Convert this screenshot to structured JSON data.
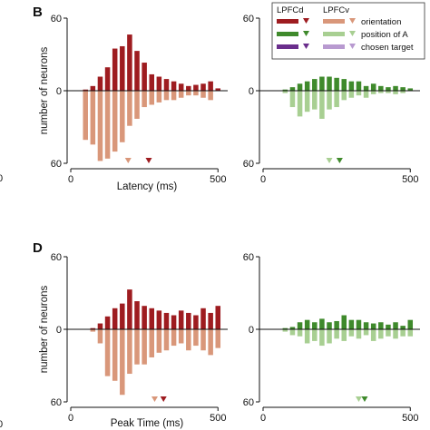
{
  "panel_letters": {
    "upper": "B",
    "lower": "D"
  },
  "edge_tick_left": "0",
  "colors": {
    "lpfcd_orientation": "#9e1c20",
    "lpfcv_orientation": "#d9977a",
    "lpfcd_position": "#3f8a2c",
    "lpfcv_position": "#a8cf92",
    "lpfcd_chosen": "#6a2e8c",
    "lpfcv_chosen": "#b89ad0"
  },
  "legend": {
    "col_d": "LPFCd",
    "col_v": "LPFCv",
    "rows": [
      {
        "label": "orientation",
        "color_d": "#9e1c20",
        "color_v": "#d9977a"
      },
      {
        "label": "position of A",
        "color_d": "#3f8a2c",
        "color_v": "#a8cf92"
      },
      {
        "label": "chosen target",
        "color_d": "#6a2e8c",
        "color_v": "#b89ad0"
      }
    ]
  },
  "chart_data": [
    {
      "type": "bar",
      "panel": "B-left",
      "xlabel": "Latency (ms)",
      "ylabel": "number of neurons",
      "xlim": [
        0,
        530
      ],
      "ylim": [
        -62,
        62
      ],
      "xticks": [
        "0",
        "500"
      ],
      "yticks_top": "60",
      "yticks_mid": "0",
      "yticks_bottom": "60",
      "x": [
        50,
        75,
        100,
        125,
        150,
        175,
        200,
        225,
        250,
        275,
        300,
        325,
        350,
        375,
        400,
        425,
        450,
        475,
        500
      ],
      "series": [
        {
          "name": "LPFCd",
          "color": "#9e1c20",
          "values": [
            1,
            4,
            12,
            20,
            36,
            38,
            48,
            34,
            24,
            14,
            12,
            10,
            8,
            6,
            4,
            5,
            6,
            8,
            2
          ]
        },
        {
          "name": "LPFCv",
          "color": "#d9977a",
          "values": [
            -42,
            -46,
            -60,
            -58,
            -52,
            -44,
            -30,
            -24,
            -14,
            -12,
            -10,
            -8,
            -8,
            -6,
            -4,
            -4,
            -6,
            -8,
            0
          ]
        }
      ],
      "markers": [
        {
          "x": 195,
          "color": "#d9977a"
        },
        {
          "x": 265,
          "color": "#9e1c20"
        }
      ]
    },
    {
      "type": "bar",
      "panel": "B-right",
      "xlabel": "",
      "ylabel": "",
      "xlim": [
        0,
        530
      ],
      "ylim": [
        -62,
        62
      ],
      "xticks": [
        "0",
        "500"
      ],
      "yticks_top": "60",
      "yticks_mid": "0",
      "yticks_bottom": "60",
      "x": [
        50,
        75,
        100,
        125,
        150,
        175,
        200,
        225,
        250,
        275,
        300,
        325,
        350,
        375,
        400,
        425,
        450,
        475,
        500
      ],
      "series": [
        {
          "name": "LPFCd",
          "color": "#3f8a2c",
          "values": [
            0,
            1,
            3,
            6,
            8,
            10,
            12,
            12,
            11,
            10,
            8,
            8,
            4,
            6,
            4,
            3,
            4,
            3,
            2
          ]
        },
        {
          "name": "LPFCv",
          "color": "#a8cf92",
          "values": [
            0,
            -2,
            -14,
            -22,
            -18,
            -16,
            -24,
            -16,
            -14,
            -8,
            -6,
            -4,
            -6,
            -3,
            -2,
            -2,
            -3,
            -2,
            0
          ]
        }
      ],
      "markers": [
        {
          "x": 225,
          "color": "#a8cf92"
        },
        {
          "x": 260,
          "color": "#3f8a2c"
        }
      ]
    },
    {
      "type": "bar",
      "panel": "D-left",
      "xlabel": "Peak Time (ms)",
      "ylabel": "number of neurons",
      "xlim": [
        0,
        530
      ],
      "ylim": [
        -62,
        62
      ],
      "xticks": [
        "0",
        "500"
      ],
      "yticks_top": "60",
      "yticks_mid": "0",
      "yticks_bottom": "60",
      "x": [
        50,
        75,
        100,
        125,
        150,
        175,
        200,
        225,
        250,
        275,
        300,
        325,
        350,
        375,
        400,
        425,
        450,
        475,
        500
      ],
      "series": [
        {
          "name": "LPFCd",
          "color": "#9e1c20",
          "values": [
            0,
            1,
            5,
            11,
            18,
            22,
            34,
            24,
            20,
            18,
            16,
            14,
            12,
            16,
            14,
            12,
            18,
            14,
            20
          ]
        },
        {
          "name": "LPFCv",
          "color": "#d9977a",
          "values": [
            0,
            -2,
            -12,
            -40,
            -44,
            -56,
            -38,
            -30,
            -30,
            -24,
            -20,
            -18,
            -14,
            -12,
            -18,
            -14,
            -18,
            -22,
            -16
          ]
        }
      ],
      "markers": [
        {
          "x": 285,
          "color": "#d9977a"
        },
        {
          "x": 315,
          "color": "#9e1c20"
        }
      ]
    },
    {
      "type": "bar",
      "panel": "D-right",
      "xlabel": "",
      "ylabel": "",
      "xlim": [
        0,
        530
      ],
      "ylim": [
        -62,
        62
      ],
      "xticks": [
        "0",
        "500"
      ],
      "yticks_top": "60",
      "yticks_mid": "0",
      "yticks_bottom": "60",
      "x": [
        50,
        75,
        100,
        125,
        150,
        175,
        200,
        225,
        250,
        275,
        300,
        325,
        350,
        375,
        400,
        425,
        450,
        475,
        500
      ],
      "series": [
        {
          "name": "LPFCd",
          "color": "#3f8a2c",
          "values": [
            0,
            1,
            2,
            6,
            8,
            6,
            9,
            6,
            7,
            12,
            8,
            8,
            6,
            5,
            6,
            4,
            6,
            3,
            8
          ]
        },
        {
          "name": "LPFCv",
          "color": "#a8cf92",
          "values": [
            0,
            -2,
            -5,
            -6,
            -12,
            -10,
            -14,
            -12,
            -8,
            -10,
            -6,
            -8,
            -5,
            -10,
            -8,
            -6,
            -8,
            -6,
            -6
          ]
        }
      ],
      "markers": [
        {
          "x": 325,
          "color": "#a8cf92"
        },
        {
          "x": 345,
          "color": "#3f8a2c"
        }
      ]
    }
  ]
}
